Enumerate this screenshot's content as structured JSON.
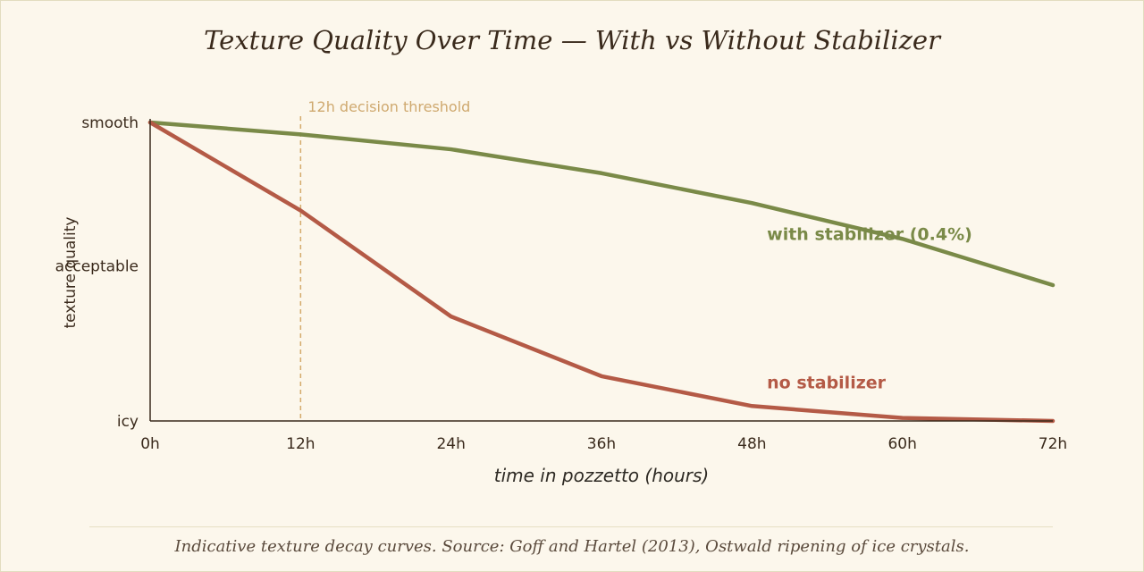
{
  "chart_data": {
    "type": "line",
    "title": "Texture Quality Over Time — With vs Without Stabilizer",
    "xlabel": "time in pozzetto (hours)",
    "ylabel": "texture quality",
    "x_ticks": [
      "0h",
      "12h",
      "24h",
      "36h",
      "48h",
      "60h",
      "72h"
    ],
    "x": [
      0,
      12,
      24,
      36,
      48,
      60,
      72
    ],
    "xlim": [
      0,
      72
    ],
    "y_tick_labels": [
      {
        "label": "icy",
        "value": 0
      },
      {
        "label": "acceptable",
        "value": 0.52
      },
      {
        "label": "smooth",
        "value": 1
      }
    ],
    "ylim": [
      0,
      1
    ],
    "grid": false,
    "series": [
      {
        "name": "with stabilizer (0.4%)",
        "color": "#7a8a48",
        "values": [
          1.0,
          0.96,
          0.91,
          0.83,
          0.73,
          0.61,
          0.455
        ]
      },
      {
        "name": "no stabilizer",
        "color": "#b45a46",
        "values": [
          1.0,
          0.705,
          0.35,
          0.15,
          0.05,
          0.01,
          0.0
        ]
      }
    ],
    "annotations": [
      {
        "text": "12h decision threshold",
        "x": 12,
        "style": "dashed",
        "color": "#d4ab6c"
      }
    ]
  },
  "footer": {
    "source": "Indicative texture decay curves. Source: Goff and Hartel (2013), Ostwald ripening of ice crystals."
  }
}
